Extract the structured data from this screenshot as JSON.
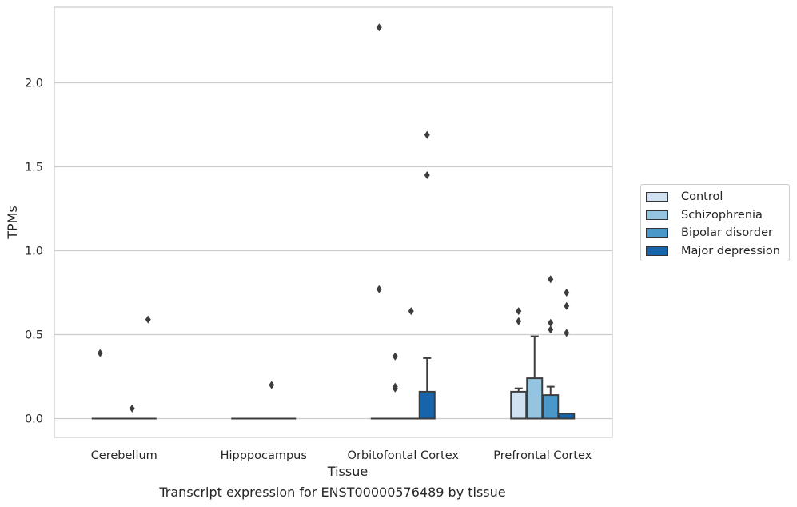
{
  "caption": "Transcript expression for ENST00000576489 by tissue",
  "chart_data": {
    "type": "box",
    "xlabel": "Tissue",
    "ylabel": "TPMs",
    "ylim": [
      -0.11,
      2.45
    ],
    "yticks": [
      0.0,
      0.5,
      1.0,
      1.5,
      2.0
    ],
    "ytick_labels": [
      "0.0",
      "0.5",
      "1.0",
      "1.5",
      "2.0"
    ],
    "grid": "horizontal",
    "legend_position": "right",
    "categories": [
      "Cerebellum",
      "Hipppocampus",
      "Orbitofontal Cortex",
      "Prefrontal Cortex"
    ],
    "series": [
      {
        "name": "Control",
        "color": "#d0e1f2",
        "boxes": [
          {
            "q1": 0,
            "median": 0,
            "q3": 0,
            "whisker_low": 0,
            "whisker_high": 0,
            "outliers": [
              0.39
            ]
          },
          {
            "q1": 0,
            "median": 0,
            "q3": 0,
            "whisker_low": 0,
            "whisker_high": 0,
            "outliers": []
          },
          {
            "q1": 0,
            "median": 0,
            "q3": 0,
            "whisker_low": 0,
            "whisker_high": 0,
            "outliers": [
              2.33,
              0.77
            ]
          },
          {
            "q1": 0,
            "median": 0,
            "q3": 0.16,
            "whisker_low": 0,
            "whisker_high": 0.18,
            "outliers": [
              0.64,
              0.58
            ]
          }
        ]
      },
      {
        "name": "Schizophrenia",
        "color": "#94c4df",
        "boxes": [
          {
            "q1": 0,
            "median": 0,
            "q3": 0,
            "whisker_low": 0,
            "whisker_high": 0,
            "outliers": []
          },
          {
            "q1": 0,
            "median": 0,
            "q3": 0,
            "whisker_low": 0,
            "whisker_high": 0,
            "outliers": []
          },
          {
            "q1": 0,
            "median": 0,
            "q3": 0,
            "whisker_low": 0,
            "whisker_high": 0,
            "outliers": [
              0.37,
              0.19,
              0.18
            ]
          },
          {
            "q1": 0,
            "median": 0,
            "q3": 0.24,
            "whisker_low": 0,
            "whisker_high": 0.49,
            "outliers": []
          }
        ]
      },
      {
        "name": "Bipolar disorder",
        "color": "#4a98c9",
        "boxes": [
          {
            "q1": 0,
            "median": 0,
            "q3": 0,
            "whisker_low": 0,
            "whisker_high": 0,
            "outliers": [
              0.06
            ]
          },
          {
            "q1": 0,
            "median": 0,
            "q3": 0,
            "whisker_low": 0,
            "whisker_high": 0,
            "outliers": [
              0.2
            ]
          },
          {
            "q1": 0,
            "median": 0,
            "q3": 0,
            "whisker_low": 0,
            "whisker_high": 0,
            "outliers": [
              0.64
            ]
          },
          {
            "q1": 0,
            "median": 0,
            "q3": 0.14,
            "whisker_low": 0,
            "whisker_high": 0.19,
            "outliers": [
              0.83,
              0.57,
              0.53
            ]
          }
        ]
      },
      {
        "name": "Major depression",
        "color": "#1764ab",
        "boxes": [
          {
            "q1": 0,
            "median": 0,
            "q3": 0,
            "whisker_low": 0,
            "whisker_high": 0,
            "outliers": [
              0.59
            ]
          },
          {
            "q1": 0,
            "median": 0,
            "q3": 0,
            "whisker_low": 0,
            "whisker_high": 0,
            "outliers": []
          },
          {
            "q1": 0,
            "median": 0,
            "q3": 0.16,
            "whisker_low": 0,
            "whisker_high": 0.36,
            "outliers": [
              1.69,
              1.45
            ]
          },
          {
            "q1": 0,
            "median": 0,
            "q3": 0.03,
            "whisker_low": 0,
            "whisker_high": 0.03,
            "outliers": [
              0.75,
              0.67,
              0.51
            ]
          }
        ]
      }
    ]
  }
}
